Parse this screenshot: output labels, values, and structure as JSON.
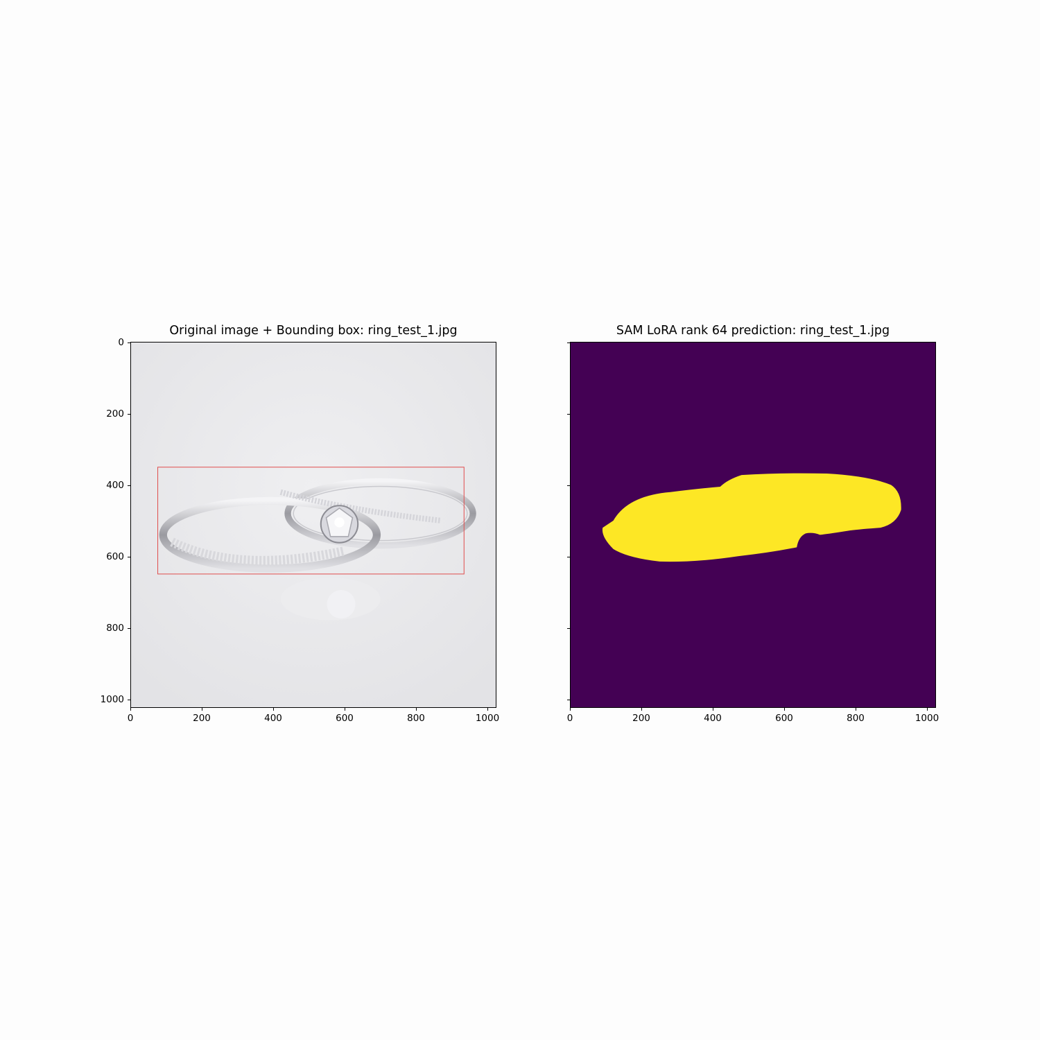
{
  "left_panel": {
    "title": "Original image + Bounding box: ring_test_1.jpg",
    "x_ticks": [
      "0",
      "200",
      "400",
      "600",
      "800",
      "1000"
    ],
    "y_ticks": [
      "0",
      "200",
      "400",
      "600",
      "800",
      "1000"
    ],
    "image": "photo of two silver rings (engagement ring with solitaire stone and band with pavé stones) on light grey background",
    "bounding_box": {
      "x_min": 75,
      "y_min": 350,
      "x_max": 935,
      "y_max": 650,
      "color": "#e05050"
    }
  },
  "right_panel": {
    "title": "SAM LoRA rank 64 prediction: ring_test_1.jpg",
    "x_ticks": [
      "0",
      "200",
      "400",
      "600",
      "800",
      "1000"
    ],
    "mask_colors": {
      "background": "#440154",
      "foreground": "#fde725"
    }
  },
  "axis_range": [
    0,
    1024
  ]
}
